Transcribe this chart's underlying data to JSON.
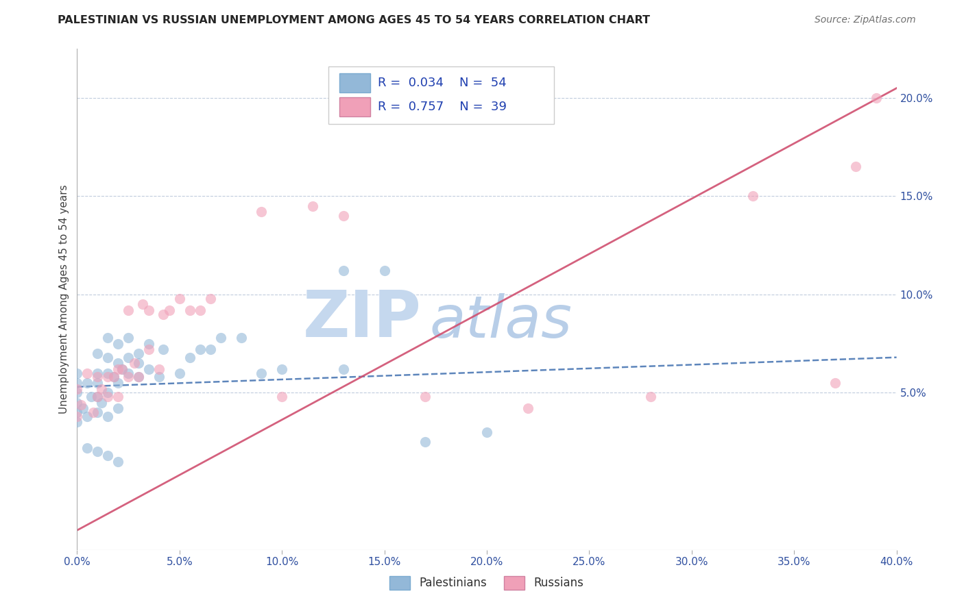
{
  "title": "PALESTINIAN VS RUSSIAN UNEMPLOYMENT AMONG AGES 45 TO 54 YEARS CORRELATION CHART",
  "source": "Source: ZipAtlas.com",
  "ylabel": "Unemployment Among Ages 45 to 54 years",
  "xlim": [
    0.0,
    0.4
  ],
  "ylim": [
    -0.03,
    0.225
  ],
  "xticks": [
    0.0,
    0.05,
    0.1,
    0.15,
    0.2,
    0.25,
    0.3,
    0.35,
    0.4
  ],
  "xtick_labels": [
    "0.0%",
    "5.0%",
    "10.0%",
    "15.0%",
    "20.0%",
    "25.0%",
    "30.0%",
    "35.0%",
    "40.0%"
  ],
  "yticks_right": [
    0.05,
    0.1,
    0.15,
    0.2
  ],
  "ytick_labels_right": [
    "5.0%",
    "10.0%",
    "15.0%",
    "20.0%"
  ],
  "blue_color": "#93b8d8",
  "pink_color": "#f0a0b8",
  "blue_line_color": "#4070b0",
  "pink_line_color": "#d05070",
  "watermark_zip": "ZIP",
  "watermark_atlas": "atlas",
  "watermark_color_zip": "#c8d8ec",
  "watermark_color_atlas": "#b0c8e8",
  "blue_scatter_x": [
    0.0,
    0.0,
    0.0,
    0.0,
    0.0,
    0.0,
    0.003,
    0.005,
    0.005,
    0.007,
    0.01,
    0.01,
    0.01,
    0.01,
    0.01,
    0.012,
    0.015,
    0.015,
    0.015,
    0.015,
    0.015,
    0.018,
    0.02,
    0.02,
    0.02,
    0.02,
    0.022,
    0.025,
    0.025,
    0.025,
    0.03,
    0.03,
    0.03,
    0.035,
    0.035,
    0.04,
    0.042,
    0.05,
    0.055,
    0.06,
    0.065,
    0.07,
    0.08,
    0.09,
    0.1,
    0.13,
    0.17,
    0.13,
    0.2,
    0.15,
    0.005,
    0.01,
    0.015,
    0.02
  ],
  "blue_scatter_y": [
    0.04,
    0.045,
    0.05,
    0.055,
    0.035,
    0.06,
    0.042,
    0.038,
    0.055,
    0.048,
    0.04,
    0.048,
    0.055,
    0.06,
    0.07,
    0.045,
    0.038,
    0.05,
    0.06,
    0.068,
    0.078,
    0.058,
    0.042,
    0.055,
    0.065,
    0.075,
    0.062,
    0.06,
    0.068,
    0.078,
    0.058,
    0.065,
    0.07,
    0.062,
    0.075,
    0.058,
    0.072,
    0.06,
    0.068,
    0.072,
    0.072,
    0.078,
    0.078,
    0.06,
    0.062,
    0.062,
    0.025,
    0.112,
    0.03,
    0.112,
    0.022,
    0.02,
    0.018,
    0.015
  ],
  "pink_scatter_x": [
    0.0,
    0.0,
    0.002,
    0.005,
    0.008,
    0.01,
    0.01,
    0.012,
    0.015,
    0.015,
    0.018,
    0.02,
    0.02,
    0.022,
    0.025,
    0.025,
    0.028,
    0.03,
    0.032,
    0.035,
    0.035,
    0.04,
    0.042,
    0.045,
    0.05,
    0.055,
    0.06,
    0.065,
    0.09,
    0.1,
    0.115,
    0.13,
    0.17,
    0.22,
    0.28,
    0.33,
    0.37,
    0.39,
    0.38
  ],
  "pink_scatter_y": [
    0.038,
    0.052,
    0.044,
    0.06,
    0.04,
    0.048,
    0.058,
    0.052,
    0.048,
    0.058,
    0.058,
    0.048,
    0.062,
    0.062,
    0.058,
    0.092,
    0.065,
    0.058,
    0.095,
    0.072,
    0.092,
    0.062,
    0.09,
    0.092,
    0.098,
    0.092,
    0.092,
    0.098,
    0.142,
    0.048,
    0.145,
    0.14,
    0.048,
    0.042,
    0.048,
    0.15,
    0.055,
    0.2,
    0.165
  ],
  "blue_trend_x": [
    0.0,
    0.4
  ],
  "blue_trend_y": [
    0.053,
    0.068
  ],
  "pink_trend_x": [
    0.0,
    0.4
  ],
  "pink_trend_y": [
    -0.02,
    0.205
  ]
}
